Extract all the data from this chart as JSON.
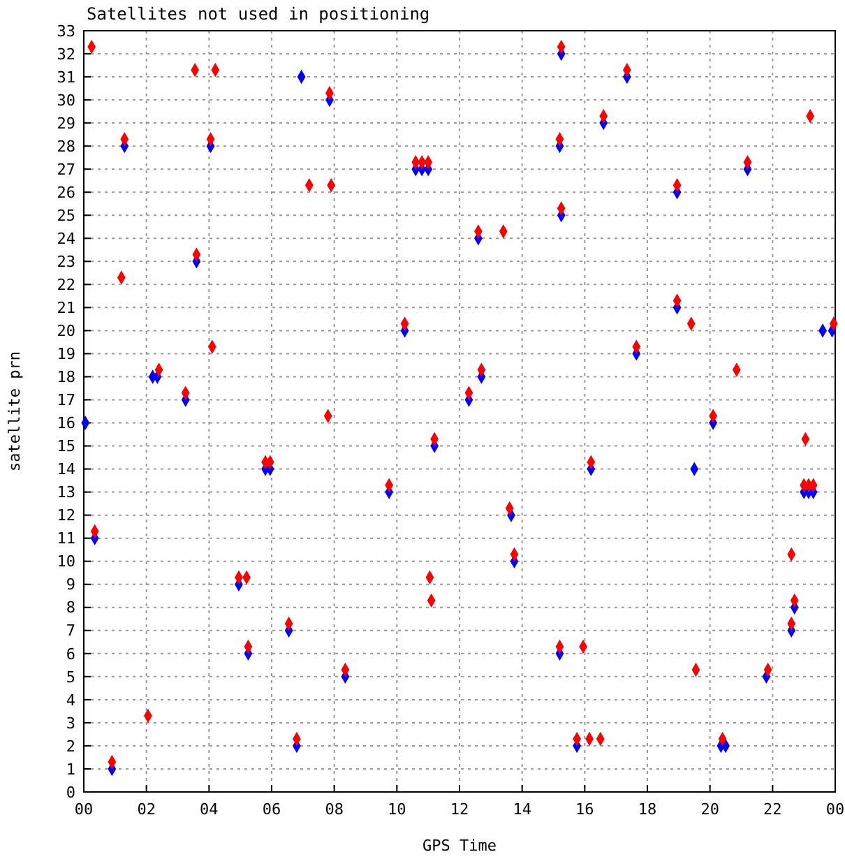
{
  "chart_data": {
    "type": "scatter",
    "title": "Satellites not used in positioning",
    "xlabel": "GPS Time",
    "ylabel": "satellite prn",
    "marker": "diamond",
    "grid": true,
    "xlim": [
      0,
      24
    ],
    "xticks": [
      {
        "value": 0,
        "label": "00"
      },
      {
        "value": 2,
        "label": "02"
      },
      {
        "value": 4,
        "label": "04"
      },
      {
        "value": 6,
        "label": "06"
      },
      {
        "value": 8,
        "label": "08"
      },
      {
        "value": 10,
        "label": "10"
      },
      {
        "value": 12,
        "label": "12"
      },
      {
        "value": 14,
        "label": "14"
      },
      {
        "value": 16,
        "label": "16"
      },
      {
        "value": 18,
        "label": "18"
      },
      {
        "value": 20,
        "label": "20"
      },
      {
        "value": 22,
        "label": "22"
      },
      {
        "value": 24,
        "label": "00"
      }
    ],
    "ylim": [
      0,
      33
    ],
    "yticks": [
      0,
      1,
      2,
      3,
      4,
      5,
      6,
      7,
      8,
      9,
      10,
      11,
      12,
      13,
      14,
      15,
      16,
      17,
      18,
      19,
      20,
      21,
      22,
      23,
      24,
      25,
      26,
      27,
      28,
      29,
      30,
      31,
      32,
      33
    ],
    "series": [
      {
        "color": "#0000ff",
        "x": [
          0.05,
          0.35,
          0.9,
          1.3,
          2.2,
          2.35,
          3.25,
          3.6,
          4.05,
          4.95,
          5.25,
          5.8,
          5.95,
          6.55,
          6.8,
          6.95,
          7.85,
          8.35,
          9.75,
          10.25,
          10.6,
          10.8,
          11.0,
          11.2,
          12.3,
          12.6,
          12.7,
          13.65,
          13.75,
          15.2,
          15.2,
          15.25,
          15.25,
          15.75,
          16.2,
          16.6,
          17.35,
          17.65,
          18.95,
          18.95,
          19.5,
          20.1,
          20.35,
          20.5,
          21.2,
          21.8,
          22.6,
          22.7,
          23.0,
          23.15,
          23.3,
          23.6,
          23.9
        ],
        "values": [
          16,
          11,
          1,
          28,
          18,
          18,
          17,
          23,
          28,
          9,
          6,
          14,
          14,
          7,
          2,
          31,
          30,
          5,
          13,
          20,
          27,
          27,
          27,
          15,
          17,
          24,
          18,
          12,
          10,
          6,
          28,
          32,
          25,
          2,
          14,
          29,
          31,
          19,
          26,
          21,
          14,
          16,
          2,
          2,
          27,
          5,
          7,
          8,
          13,
          13,
          13,
          20,
          20
        ]
      },
      {
        "color": "#ff0000",
        "x": [
          0.25,
          0.35,
          0.9,
          1.2,
          1.3,
          2.05,
          2.4,
          3.25,
          3.55,
          3.6,
          4.05,
          4.1,
          4.2,
          4.95,
          5.2,
          5.25,
          5.8,
          5.95,
          6.55,
          6.8,
          7.2,
          7.8,
          7.85,
          7.9,
          8.35,
          9.75,
          10.25,
          10.6,
          10.8,
          11.0,
          11.05,
          11.1,
          11.2,
          12.3,
          12.6,
          12.7,
          13.4,
          13.6,
          13.75,
          15.2,
          15.2,
          15.25,
          15.25,
          15.75,
          15.95,
          16.15,
          16.2,
          16.5,
          16.6,
          17.35,
          17.65,
          18.95,
          18.95,
          19.4,
          19.55,
          20.1,
          20.4,
          20.85,
          21.2,
          21.85,
          22.6,
          22.6,
          22.7,
          23.0,
          23.05,
          23.15,
          23.2,
          23.3,
          23.95
        ],
        "values": [
          32.3,
          11.3,
          1.3,
          22.3,
          28.3,
          3.3,
          18.3,
          17.3,
          31.3,
          23.3,
          28.3,
          19.3,
          31.3,
          9.3,
          9.3,
          6.3,
          14.3,
          14.3,
          7.3,
          2.3,
          26.3,
          16.3,
          30.3,
          26.3,
          5.3,
          13.3,
          20.3,
          27.3,
          27.3,
          27.3,
          9.3,
          8.3,
          15.3,
          17.3,
          24.3,
          18.3,
          24.3,
          12.3,
          10.3,
          6.3,
          28.3,
          32.3,
          25.3,
          2.3,
          6.3,
          2.3,
          14.3,
          2.3,
          29.3,
          31.3,
          19.3,
          26.3,
          21.3,
          20.3,
          5.3,
          16.3,
          2.3,
          18.3,
          27.3,
          5.3,
          7.3,
          10.3,
          8.3,
          13.3,
          15.3,
          13.3,
          29.3,
          13.3,
          20.3
        ]
      }
    ]
  }
}
